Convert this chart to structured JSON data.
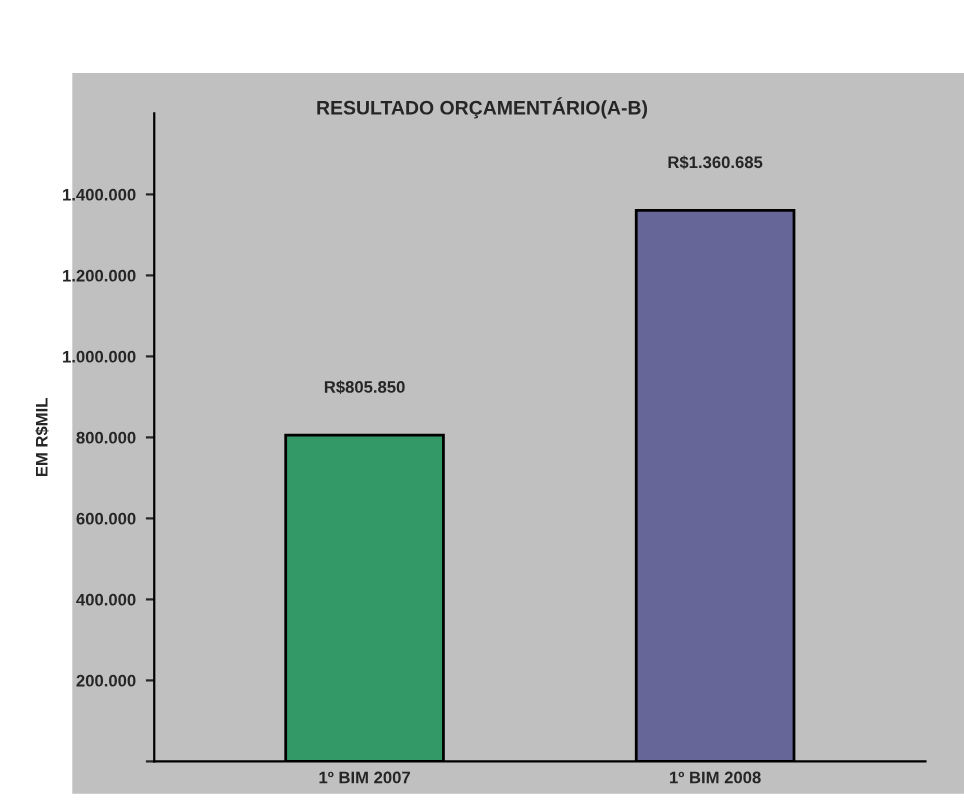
{
  "chart_data": {
    "type": "bar",
    "title": "RESULTADO ORÇAMENTÁRIO(A-B)",
    "ylabel": "EM R$MIL",
    "categories": [
      "1º BIM 2007",
      "1º BIM 2008"
    ],
    "values": [
      805850,
      1360685
    ],
    "colors": [
      "#339966",
      "#666699"
    ],
    "value_labels": [
      "R$805.850",
      "R$1.360.685"
    ],
    "ylim": [
      0,
      1600000
    ],
    "yticks": [
      {
        "value": 0,
        "label": null
      },
      {
        "value": 200000,
        "label": "200.000"
      },
      {
        "value": 400000,
        "label": "400.000"
      },
      {
        "value": 600000,
        "label": "600.000"
      },
      {
        "value": 800000,
        "label": "800.000"
      },
      {
        "value": 1000000,
        "label": "1.000.000"
      },
      {
        "value": 1200000,
        "label": "1.200.000"
      },
      {
        "value": 1400000,
        "label": "1.400.000"
      }
    ],
    "grid": false,
    "legend": false
  }
}
